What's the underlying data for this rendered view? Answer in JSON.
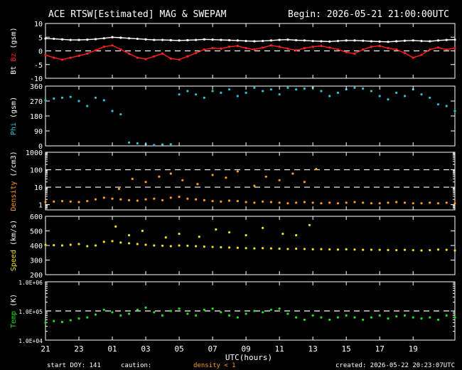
{
  "header": {
    "title": "ACE RTSW[Estimated] MAG & SWEPAM",
    "begin": "Begin: 2026-05-21 21:00:00UTC"
  },
  "footer": {
    "start_doy": "start DOY: 141",
    "caution": "caution:",
    "density_note": "density < 1",
    "created": "created: 2026-05-22 20:23:07UTC"
  },
  "colors": {
    "bt": "#ffffff",
    "bz": "#ff2020",
    "phi": "#29c3d8",
    "density": "#ff9a1a",
    "speed": "#f0e020",
    "temp": "#22dd22",
    "axes": "#ffffff",
    "caution": "#ff9a1a"
  },
  "chart_data": [
    {
      "type": "line",
      "panel": "mag",
      "ylabel": [
        {
          "text": "Bt",
          "color": "#ffffff"
        },
        {
          "text": " Bz",
          "color": "#ff2020"
        },
        {
          "text": " (gsm)",
          "color": "#ffffff"
        }
      ],
      "ylim": [
        -10,
        10
      ],
      "yticks": [
        -10,
        -5,
        0,
        5,
        10
      ],
      "dashed": [
        0
      ],
      "series": [
        {
          "key": "bt",
          "color": "#ffffff",
          "x": [
            21,
            21.5,
            22,
            22.5,
            23,
            23.5,
            24,
            24.5,
            25,
            25.5,
            26,
            26.5,
            27,
            27.5,
            28,
            28.5,
            29,
            29.5,
            30,
            30.5,
            31,
            31.5,
            32,
            32.5,
            33,
            33.5,
            34,
            34.5,
            35,
            35.5,
            36,
            36.5,
            37,
            37.5,
            38,
            38.5,
            39,
            39.5,
            40,
            40.5,
            41,
            41.5,
            42,
            42.5,
            43,
            43.5,
            44,
            44.5,
            45,
            45.5
          ],
          "values": [
            4.5,
            4.4,
            4.2,
            4.0,
            4.0,
            4.1,
            4.3,
            4.6,
            5.0,
            4.8,
            4.6,
            4.4,
            4.2,
            4.0,
            4.0,
            3.9,
            3.8,
            3.9,
            4.0,
            4.2,
            4.1,
            4.0,
            3.9,
            3.8,
            3.6,
            3.5,
            3.6,
            3.8,
            4.0,
            4.1,
            3.9,
            3.8,
            3.6,
            3.5,
            3.4,
            3.6,
            3.8,
            3.8,
            3.7,
            3.5,
            3.4,
            3.3,
            3.5,
            3.7,
            3.8,
            3.6,
            3.5,
            3.8,
            4.0,
            4.1
          ]
        },
        {
          "key": "bz",
          "color": "#ff2020",
          "x": [
            21,
            21.5,
            22,
            22.5,
            23,
            23.5,
            24,
            24.5,
            25,
            25.5,
            26,
            26.5,
            27,
            27.5,
            28,
            28.5,
            29,
            29.5,
            30,
            30.5,
            31,
            31.5,
            32,
            32.5,
            33,
            33.5,
            34,
            34.5,
            35,
            35.5,
            36,
            36.5,
            37,
            37.5,
            38,
            38.5,
            39,
            39.5,
            40,
            40.5,
            41,
            41.5,
            42,
            42.5,
            43,
            43.5,
            44,
            44.5,
            45,
            45.5
          ],
          "values": [
            -1.5,
            -2.5,
            -3.2,
            -2.5,
            -1.8,
            -1.0,
            0.2,
            1.5,
            2.0,
            0.5,
            -1.0,
            -2.5,
            -3.0,
            -2.0,
            -1.0,
            -2.8,
            -3.2,
            -2.0,
            -0.8,
            0.5,
            1.0,
            0.8,
            1.5,
            1.8,
            1.0,
            0.5,
            1.2,
            2.0,
            1.5,
            0.8,
            0.2,
            1.0,
            1.5,
            1.8,
            1.2,
            0.5,
            -0.5,
            -1.0,
            0.5,
            1.5,
            1.8,
            1.0,
            0.5,
            -0.8,
            -2.5,
            -1.5,
            0.5,
            1.2,
            0.5,
            1.0
          ]
        }
      ]
    },
    {
      "type": "scatter",
      "panel": "phi",
      "ylabel": [
        {
          "text": "Phi",
          "color": "#29c3d8"
        },
        {
          "text": " (gsm)",
          "color": "#ffffff"
        }
      ],
      "ylim": [
        0,
        360
      ],
      "yticks": [
        0,
        90,
        180,
        270,
        360
      ],
      "dashed": [],
      "series": [
        {
          "key": "phi",
          "color": "#29c3d8",
          "x": [
            21,
            21.5,
            22,
            22.5,
            23,
            23.5,
            24,
            24.5,
            25,
            25.5,
            26,
            26.5,
            27,
            27.5,
            28,
            28.5,
            29,
            29.5,
            30,
            30.5,
            31,
            31.5,
            32,
            32.5,
            33,
            33.5,
            34,
            34.5,
            35,
            35.5,
            36,
            36.5,
            37,
            37.5,
            38,
            38.5,
            39,
            39.5,
            40,
            40.5,
            41,
            41.5,
            42,
            42.5,
            43,
            43.5,
            44,
            44.5,
            45,
            45.5
          ],
          "values": [
            275,
            285,
            290,
            295,
            270,
            240,
            290,
            275,
            210,
            190,
            20,
            15,
            10,
            5,
            8,
            10,
            310,
            330,
            310,
            290,
            330,
            320,
            340,
            300,
            320,
            350,
            330,
            340,
            310,
            350,
            340,
            345,
            350,
            330,
            300,
            320,
            340,
            350,
            345,
            330,
            300,
            280,
            320,
            300,
            340,
            310,
            290,
            250,
            240,
            210
          ]
        }
      ]
    },
    {
      "type": "scatter",
      "panel": "density",
      "ylabel": [
        {
          "text": "Density",
          "color": "#ff9a1a"
        },
        {
          "text": " (/cm3)",
          "color": "#ffffff"
        }
      ],
      "scale": "log",
      "ylim": [
        0.5,
        1000
      ],
      "yticks": [
        1,
        10,
        100,
        1000
      ],
      "dashed": [
        10,
        100
      ],
      "series": [
        {
          "key": "density",
          "color": "#ff9a1a",
          "x": [
            21,
            21.5,
            22,
            22.5,
            23,
            23.5,
            24,
            24.5,
            25,
            25.5,
            26,
            26.5,
            27,
            27.5,
            28,
            28.5,
            29,
            29.5,
            30,
            30.5,
            31,
            31.5,
            32,
            32.5,
            33,
            33.5,
            34,
            34.5,
            35,
            35.5,
            36,
            36.5,
            37,
            37.5,
            38,
            38.5,
            39,
            39.5,
            40,
            40.5,
            41,
            41.5,
            42,
            42.5,
            43,
            43.5,
            44,
            44.5,
            45,
            45.5
          ],
          "values": [
            1.4,
            1.5,
            1.6,
            1.5,
            1.4,
            1.6,
            2.0,
            2.5,
            2.2,
            2.0,
            1.8,
            1.7,
            2.0,
            2.2,
            1.8,
            2.5,
            2.8,
            2.2,
            2.0,
            1.8,
            1.6,
            1.5,
            1.7,
            1.6,
            1.4,
            1.3,
            1.5,
            1.4,
            1.3,
            1.2,
            1.3,
            1.4,
            1.3,
            1.2,
            1.3,
            1.2,
            1.3,
            1.4,
            1.3,
            1.2,
            1.2,
            1.3,
            1.4,
            1.3,
            1.2,
            1.2,
            1.3,
            1.2,
            1.3,
            1.2
          ]
        },
        {
          "key": "density_spikes",
          "color": "#ff9a1a",
          "x": [
            25.4,
            26.2,
            27.0,
            27.8,
            28.5,
            29.2,
            30.1,
            31.0,
            31.8,
            32.5,
            33.5,
            34.2,
            35.0,
            35.8,
            36.5,
            37.2
          ],
          "values": [
            8,
            30,
            20,
            40,
            60,
            25,
            15,
            50,
            35,
            80,
            12,
            40,
            25,
            60,
            20,
            110
          ]
        }
      ]
    },
    {
      "type": "scatter",
      "panel": "speed",
      "ylabel": [
        {
          "text": "Speed",
          "color": "#f0e020"
        },
        {
          "text": " (km/s)",
          "color": "#ffffff"
        }
      ],
      "ylim": [
        200,
        600
      ],
      "yticks": [
        200,
        300,
        400,
        500,
        600
      ],
      "dashed": [],
      "series": [
        {
          "key": "speed",
          "color": "#f0e020",
          "x": [
            21,
            21.5,
            22,
            22.5,
            23,
            23.5,
            24,
            24.5,
            25,
            25.5,
            26,
            26.5,
            27,
            27.5,
            28,
            28.5,
            29,
            29.5,
            30,
            30.5,
            31,
            31.5,
            32,
            32.5,
            33,
            33.5,
            34,
            34.5,
            35,
            35.5,
            36,
            36.5,
            37,
            37.5,
            38,
            38.5,
            39,
            39.5,
            40,
            40.5,
            41,
            41.5,
            42,
            42.5,
            43,
            43.5,
            44,
            44.5,
            45,
            45.5
          ],
          "values": [
            405,
            402,
            400,
            405,
            410,
            395,
            400,
            425,
            430,
            420,
            415,
            410,
            405,
            400,
            398,
            395,
            400,
            398,
            395,
            392,
            390,
            388,
            386,
            384,
            382,
            380,
            382,
            380,
            378,
            376,
            378,
            376,
            374,
            375,
            373,
            372,
            374,
            372,
            370,
            371,
            370,
            369,
            368,
            370,
            368,
            366,
            368,
            372,
            370,
            366
          ]
        },
        {
          "key": "speed_spikes",
          "color": "#f0e020",
          "x": [
            25.2,
            26.0,
            26.8,
            28.2,
            29.0,
            30.2,
            31.2,
            32.0,
            33.0,
            34.0,
            35.2,
            36.0,
            36.8
          ],
          "values": [
            530,
            470,
            500,
            455,
            480,
            460,
            510,
            490,
            470,
            520,
            480,
            470,
            540
          ]
        }
      ]
    },
    {
      "type": "scatter",
      "panel": "temp",
      "ylabel": [
        {
          "text": "Temp",
          "color": "#22dd22"
        },
        {
          "text": " (K)",
          "color": "#ffffff"
        }
      ],
      "scale": "log",
      "ylim": [
        10000,
        1000000
      ],
      "yticks": [
        10000,
        100000,
        1000000
      ],
      "yticklabels": [
        "1.0E+04",
        "1.0E+05",
        "1.0E+06"
      ],
      "dashed": [
        100000
      ],
      "series": [
        {
          "key": "temp",
          "color": "#22dd22",
          "x": [
            21,
            21.5,
            22,
            22.5,
            23,
            23.5,
            24,
            24.5,
            25,
            25.5,
            26,
            26.5,
            27,
            27.5,
            28,
            28.5,
            29,
            29.5,
            30,
            30.5,
            31,
            31.5,
            32,
            32.5,
            33,
            33.5,
            34,
            34.5,
            35,
            35.5,
            36,
            36.5,
            37,
            37.5,
            38,
            38.5,
            39,
            39.5,
            40,
            40.5,
            41,
            41.5,
            42,
            42.5,
            43,
            43.5,
            44,
            44.5,
            45,
            45.5
          ],
          "values": [
            40000,
            45000,
            42000,
            48000,
            55000,
            60000,
            75000,
            110000,
            90000,
            70000,
            80000,
            110000,
            130000,
            90000,
            70000,
            100000,
            120000,
            80000,
            70000,
            110000,
            120000,
            90000,
            70000,
            60000,
            80000,
            100000,
            90000,
            110000,
            120000,
            80000,
            60000,
            50000,
            70000,
            60000,
            50000,
            60000,
            70000,
            60000,
            50000,
            60000,
            70000,
            55000,
            65000,
            70000,
            60000,
            55000,
            60000,
            50000,
            70000,
            60000
          ]
        }
      ]
    }
  ],
  "xaxis": {
    "label": "UTC(hours)",
    "range": [
      21,
      45.5
    ],
    "tick_values": [
      21,
      23,
      25,
      27,
      29,
      31,
      33,
      35,
      37,
      39,
      41,
      43
    ],
    "tick_labels": [
      "21",
      "23",
      "01",
      "03",
      "05",
      "07",
      "09",
      "11",
      "13",
      "15",
      "17",
      "19"
    ]
  }
}
